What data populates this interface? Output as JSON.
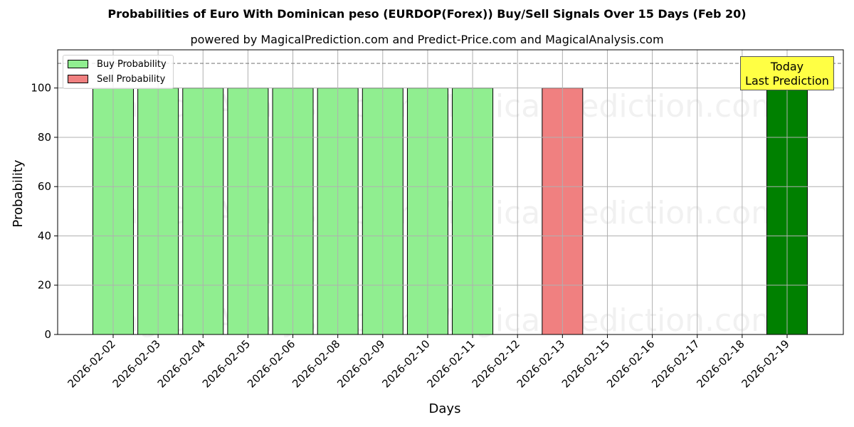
{
  "header": {
    "title": "Probabilities of Euro With Dominican peso (EURDOP(Forex)) Buy/Sell Signals Over 15 Days (Feb 20)",
    "subtitle": "powered by MagicalPrediction.com and Predict-Price.com and MagicalAnalysis.com"
  },
  "legend": {
    "items": [
      {
        "label": "Buy Probability",
        "color": "#90ee90"
      },
      {
        "label": "Sell Probability",
        "color": "#f08080"
      }
    ]
  },
  "annotation": {
    "line1": "Today",
    "line2": "Last Prediction",
    "color": "#ffff44"
  },
  "watermarks": [
    "MagicalAnalysis.com",
    "MagicalPrediction.com"
  ],
  "colors": {
    "buy": "#90ee90",
    "sell": "#f08080",
    "today": "#008000"
  },
  "chart_data": {
    "type": "bar",
    "title": "Probabilities of Euro With Dominican peso (EURDOP(Forex)) Buy/Sell Signals Over 15 Days (Feb 20)",
    "subtitle": "powered by MagicalPrediction.com and Predict-Price.com and MagicalAnalysis.com",
    "xlabel": "Days",
    "ylabel": "Probability",
    "ylim": [
      0,
      115.5
    ],
    "yticks": [
      0,
      20,
      40,
      60,
      80,
      100
    ],
    "grid": true,
    "legend_position": "upper left",
    "reference_line": {
      "y": 110,
      "style": "dashed",
      "color": "#808080"
    },
    "categories": [
      "2026-02-02",
      "2026-02-03",
      "2026-02-04",
      "2026-02-05",
      "2026-02-06",
      "2026-02-08",
      "2026-02-09",
      "2026-02-10",
      "2026-02-11",
      "2026-02-12",
      "2026-02-13",
      "2026-02-15",
      "2026-02-16",
      "2026-02-17",
      "2026-02-18",
      "2026-02-19"
    ],
    "series": [
      {
        "name": "Buy Probability",
        "color": "#90ee90",
        "values": [
          100,
          100,
          100,
          100,
          100,
          100,
          100,
          100,
          100,
          0,
          0,
          0,
          0,
          0,
          0,
          100
        ]
      },
      {
        "name": "Sell Probability",
        "color": "#f08080",
        "values": [
          0,
          0,
          0,
          0,
          0,
          0,
          0,
          0,
          0,
          0,
          100,
          0,
          0,
          0,
          0,
          0
        ]
      }
    ],
    "highlight": {
      "category": "2026-02-19",
      "color": "#008000",
      "label": "Today Last Prediction"
    }
  }
}
